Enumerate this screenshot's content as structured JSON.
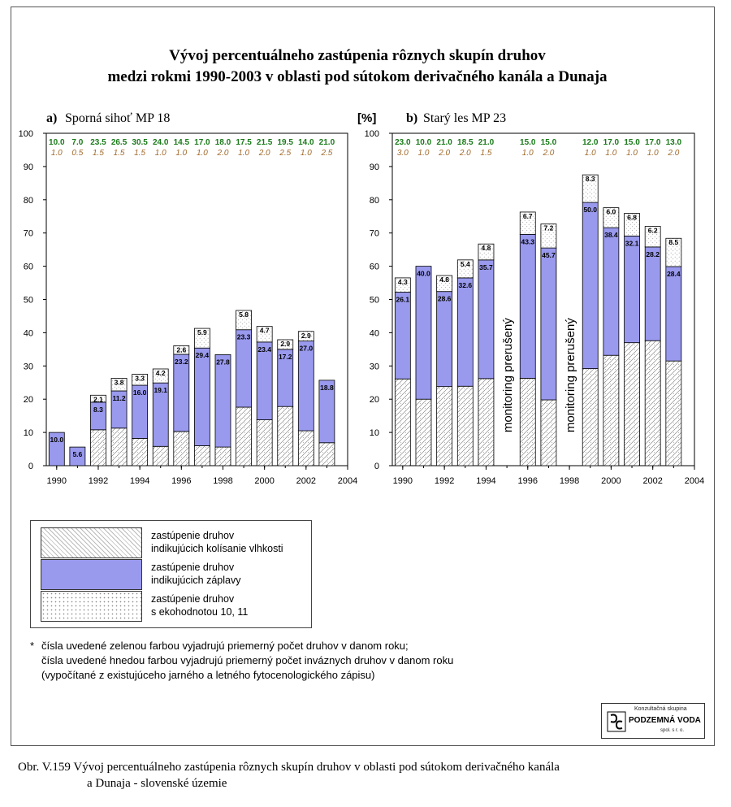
{
  "title_line1": "Vývoj percentuálneho zastúpenia rôznych skupín druhov",
  "title_line2": "medzi rokmi 1990-2003 v oblasti pod sútokom derivačného kanála a Dunaja",
  "colors": {
    "moisture": "#ffffff",
    "flood": "#9999ee",
    "eco": "#ffffff",
    "green": "#1a7a1a",
    "brown": "#a0692a"
  },
  "legend": [
    {
      "key": "moisture",
      "line1": "zastúpenie druhov",
      "line2": "indikujúcich kolísanie vlhkosti"
    },
    {
      "key": "flood",
      "line1": "zastúpenie druhov",
      "line2": "indikujúcich záplavy"
    },
    {
      "key": "eco",
      "line1": "zastúpenie druhov",
      "line2": "s ekohodnotou 10, 11"
    }
  ],
  "footnote": {
    "star": "*",
    "line1": "čísla uvedené zelenou farbou vyjadrujú priemerný počet druhov v danom roku;",
    "line2": "čísla uvedené hnedou farbou vyjadrujú priemerný počet inváznych druhov v danom roku",
    "line3": "(vypočítané z existujúceho jarného a letného fytocenologického zápisu)"
  },
  "logo": {
    "small": "Konzultačná skupina",
    "big": "PODZEMNÁ VODA",
    "tiny": "spol. s r. o."
  },
  "caption_line1": "Obr. V.159 Vývoj percentuálneho zastúpenia rôznych skupín druhov v oblasti pod sútokom derivačného kanála",
  "caption_line2": "a Dunaja - slovenské územie",
  "chart_data": [
    {
      "type": "bar",
      "stacked": true,
      "panel_letter": "a)",
      "panel_name": "Sporná sihoť MP 18",
      "ylim": [
        0,
        100
      ],
      "yticks": [
        0,
        10,
        20,
        30,
        40,
        50,
        60,
        70,
        80,
        90,
        100
      ],
      "xlim": [
        1989.5,
        2004
      ],
      "xticks": [
        1990,
        1992,
        1994,
        1996,
        1998,
        2000,
        2002,
        2004
      ],
      "years": [
        1990,
        1991,
        1992,
        1993,
        1994,
        1995,
        1996,
        1997,
        1998,
        1999,
        2000,
        2001,
        2002,
        2003
      ],
      "series": [
        {
          "key": "moisture",
          "values": [
            0,
            0,
            10.8,
            11.3,
            8.2,
            5.8,
            10.3,
            6.0,
            5.6,
            17.6,
            13.8,
            17.8,
            10.5,
            6.9
          ]
        },
        {
          "key": "flood",
          "values": [
            10.0,
            5.6,
            8.3,
            11.2,
            16.0,
            19.1,
            23.2,
            29.4,
            27.8,
            23.3,
            23.4,
            17.2,
            27.0,
            18.8
          ]
        },
        {
          "key": "eco",
          "values": [
            0,
            0,
            2.1,
            3.8,
            3.3,
            4.2,
            2.6,
            5.9,
            0,
            5.8,
            4.7,
            2.9,
            2.9,
            0
          ]
        }
      ],
      "flood_labels": [
        "10.0",
        "5.6",
        "8.3",
        "11.2",
        "16.0",
        "19.1",
        "23.2",
        "29.4",
        "27.8",
        "23.3",
        "23.4",
        "17.2",
        "27.0",
        "18.8"
      ],
      "eco_labels": [
        "",
        "",
        "2.1",
        "3.8",
        "3.3",
        "4.2",
        "2.6",
        "5.9",
        "",
        "5.8",
        "4.7",
        "2.9",
        "2.9",
        ""
      ],
      "green_numbers": [
        "10.0",
        "7.0",
        "23.5",
        "26.5",
        "30.5",
        "24.0",
        "14.5",
        "17.0",
        "18.0",
        "17.5",
        "21.5",
        "19.5",
        "14.0",
        "21.0"
      ],
      "brown_numbers": [
        "1.0",
        "0.5",
        "1.5",
        "1.5",
        "1.5",
        "1.0",
        "1.0",
        "1.0",
        "2.0",
        "1.0",
        "2.0",
        "2.5",
        "1.0",
        "2.5"
      ],
      "annotations": []
    },
    {
      "type": "bar",
      "stacked": true,
      "ylabel": "[%]",
      "panel_letter": "b)",
      "panel_name": "Starý les MP 23",
      "ylim": [
        0,
        100
      ],
      "yticks": [
        0,
        10,
        20,
        30,
        40,
        50,
        60,
        70,
        80,
        90,
        100
      ],
      "xlim": [
        1989.5,
        2004
      ],
      "xticks": [
        1990,
        1992,
        1994,
        1996,
        1998,
        2000,
        2002,
        2004
      ],
      "years": [
        1990,
        1991,
        1992,
        1993,
        1994,
        1996,
        1997,
        1999,
        2000,
        2001,
        2002,
        2003
      ],
      "series": [
        {
          "key": "moisture",
          "values": [
            26.1,
            20.0,
            23.8,
            23.9,
            26.2,
            26.3,
            19.8,
            29.2,
            33.2,
            37.0,
            37.6,
            31.5
          ]
        },
        {
          "key": "flood",
          "values": [
            26.1,
            40.0,
            28.6,
            32.6,
            35.7,
            43.3,
            45.7,
            50.0,
            38.4,
            32.1,
            28.2,
            28.4
          ]
        },
        {
          "key": "eco",
          "values": [
            4.3,
            0,
            4.8,
            5.4,
            4.8,
            6.7,
            7.2,
            8.3,
            6.0,
            6.8,
            6.2,
            8.5
          ]
        }
      ],
      "flood_labels": [
        "26.1",
        "40.0",
        "28.6",
        "32.6",
        "35.7",
        "43.3",
        "45.7",
        "50.0",
        "38.4",
        "32.1",
        "28.2",
        "28.4"
      ],
      "eco_labels": [
        "4.3",
        "",
        "4.8",
        "5.4",
        "4.8",
        "6.7",
        "7.2",
        "8.3",
        "6.0",
        "6.8",
        "6.2",
        "8.5"
      ],
      "green_numbers": [
        "23.0",
        "10.0",
        "21.0",
        "18.5",
        "21.0",
        "15.0",
        "15.0",
        "12.0",
        "17.0",
        "15.0",
        "17.0",
        "13.0"
      ],
      "brown_numbers": [
        "3.0",
        "1.0",
        "2.0",
        "2.0",
        "1.5",
        "1.0",
        "2.0",
        "1.0",
        "1.0",
        "1.0",
        "1.0",
        "2.0"
      ],
      "annotations": [
        {
          "text": "monitoring prerušený",
          "year": 1995,
          "y": 10
        },
        {
          "text": "monitoring prerušený",
          "year": 1998,
          "y": 10
        }
      ]
    }
  ]
}
